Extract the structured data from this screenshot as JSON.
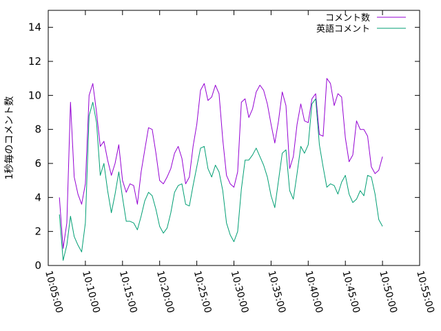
{
  "chart_data": {
    "type": "line",
    "title": "",
    "xlabel": "",
    "ylabel": "1秒毎のコメント数",
    "ylim": [
      0,
      15
    ],
    "yticks": [
      0,
      2,
      4,
      6,
      8,
      10,
      12,
      14
    ],
    "xlim": [
      "10:05:00",
      "10:55:00"
    ],
    "xticks": [
      "10:05:00",
      "10:10:00",
      "10:15:00",
      "10:20:00",
      "10:25:00",
      "10:30:00",
      "10:35:00",
      "10:40:00",
      "10:45:00",
      "10:50:00",
      "10:55:00"
    ],
    "legend_position": "top-right",
    "grid": false,
    "series": [
      {
        "name": "コメント数",
        "color": "#9400d3",
        "x": [
          "10:06:30",
          "10:07:00",
          "10:07:30",
          "10:08:00",
          "10:08:30",
          "10:09:00",
          "10:09:30",
          "10:10:00",
          "10:10:30",
          "10:11:00",
          "10:11:30",
          "10:12:00",
          "10:12:30",
          "10:13:00",
          "10:13:30",
          "10:14:00",
          "10:14:30",
          "10:15:00",
          "10:15:30",
          "10:16:00",
          "10:16:30",
          "10:17:00",
          "10:17:30",
          "10:18:00",
          "10:18:30",
          "10:19:00",
          "10:19:30",
          "10:20:00",
          "10:20:30",
          "10:21:00",
          "10:21:30",
          "10:22:00",
          "10:22:30",
          "10:23:00",
          "10:23:30",
          "10:24:00",
          "10:24:30",
          "10:25:00",
          "10:25:30",
          "10:26:00",
          "10:26:30",
          "10:27:00",
          "10:27:30",
          "10:28:00",
          "10:28:30",
          "10:29:00",
          "10:29:30",
          "10:30:00",
          "10:30:30",
          "10:31:00",
          "10:31:30",
          "10:32:00",
          "10:32:30",
          "10:33:00",
          "10:33:30",
          "10:34:00",
          "10:34:30",
          "10:35:00",
          "10:35:30",
          "10:36:00",
          "10:36:30",
          "10:37:00",
          "10:37:30",
          "10:38:00",
          "10:38:30",
          "10:39:00",
          "10:39:30",
          "10:40:00",
          "10:40:30",
          "10:41:00",
          "10:41:30",
          "10:42:00",
          "10:42:30",
          "10:43:00",
          "10:43:30",
          "10:44:00",
          "10:44:30",
          "10:45:00",
          "10:45:30",
          "10:46:00",
          "10:46:30",
          "10:47:00",
          "10:47:30",
          "10:48:00",
          "10:48:30",
          "10:49:00",
          "10:49:30",
          "10:50:00"
        ],
        "values": [
          4.0,
          1.0,
          2.5,
          9.6,
          5.2,
          4.2,
          3.6,
          4.8,
          10.0,
          10.7,
          9.0,
          7.0,
          7.3,
          6.2,
          5.3,
          6.0,
          7.1,
          5.0,
          4.3,
          4.8,
          4.7,
          3.6,
          5.5,
          6.8,
          8.1,
          8.0,
          6.6,
          5.0,
          4.8,
          5.2,
          5.7,
          6.6,
          7.0,
          6.3,
          4.8,
          5.2,
          7.0,
          8.3,
          10.3,
          10.7,
          9.7,
          9.9,
          10.6,
          10.1,
          7.4,
          5.3,
          4.8,
          4.6,
          5.5,
          9.6,
          9.8,
          8.7,
          9.2,
          10.2,
          10.6,
          10.3,
          9.5,
          8.3,
          7.2,
          8.5,
          10.2,
          9.4,
          5.7,
          6.4,
          8.3,
          9.5,
          8.5,
          8.4,
          9.8,
          10.1,
          7.7,
          7.6,
          11.0,
          10.7,
          9.4,
          10.1,
          9.9,
          7.5,
          6.1,
          6.5,
          8.5,
          8.0,
          8.0,
          7.6,
          5.8,
          5.4,
          5.6,
          6.4
        ]
      },
      {
        "name": "英語コメント",
        "color": "#009e73",
        "x": [
          "10:06:30",
          "10:07:00",
          "10:07:30",
          "10:08:00",
          "10:08:30",
          "10:09:00",
          "10:09:30",
          "10:10:00",
          "10:10:30",
          "10:11:00",
          "10:11:30",
          "10:12:00",
          "10:12:30",
          "10:13:00",
          "10:13:30",
          "10:14:00",
          "10:14:30",
          "10:15:00",
          "10:15:30",
          "10:16:00",
          "10:16:30",
          "10:17:00",
          "10:17:30",
          "10:18:00",
          "10:18:30",
          "10:19:00",
          "10:19:30",
          "10:20:00",
          "10:20:30",
          "10:21:00",
          "10:21:30",
          "10:22:00",
          "10:22:30",
          "10:23:00",
          "10:23:30",
          "10:24:00",
          "10:24:30",
          "10:25:00",
          "10:25:30",
          "10:26:00",
          "10:26:30",
          "10:27:00",
          "10:27:30",
          "10:28:00",
          "10:28:30",
          "10:29:00",
          "10:29:30",
          "10:30:00",
          "10:30:30",
          "10:31:00",
          "10:31:30",
          "10:32:00",
          "10:32:30",
          "10:33:00",
          "10:33:30",
          "10:34:00",
          "10:34:30",
          "10:35:00",
          "10:35:30",
          "10:36:00",
          "10:36:30",
          "10:37:00",
          "10:37:30",
          "10:38:00",
          "10:38:30",
          "10:39:00",
          "10:39:30",
          "10:40:00",
          "10:40:30",
          "10:41:00",
          "10:41:30",
          "10:42:00",
          "10:42:30",
          "10:43:00",
          "10:43:30",
          "10:44:00",
          "10:44:30",
          "10:45:00",
          "10:45:30",
          "10:46:00",
          "10:46:30",
          "10:47:00",
          "10:47:30",
          "10:48:00",
          "10:48:30",
          "10:49:00",
          "10:49:30",
          "10:50:00"
        ],
        "values": [
          3.0,
          0.3,
          1.2,
          2.9,
          1.7,
          1.2,
          0.8,
          2.5,
          8.8,
          9.6,
          8.4,
          5.3,
          6.0,
          4.4,
          3.1,
          4.2,
          5.5,
          4.0,
          2.6,
          2.6,
          2.5,
          2.1,
          2.9,
          3.8,
          4.3,
          4.1,
          3.3,
          2.3,
          1.9,
          2.2,
          3.1,
          4.3,
          4.7,
          4.8,
          3.6,
          3.5,
          4.7,
          5.8,
          6.9,
          7.0,
          5.7,
          5.2,
          5.9,
          5.5,
          4.4,
          2.5,
          1.8,
          1.4,
          2.0,
          4.5,
          6.2,
          6.2,
          6.5,
          6.9,
          6.4,
          5.9,
          5.2,
          4.1,
          3.4,
          5.0,
          6.6,
          6.8,
          4.4,
          3.9,
          5.4,
          7.0,
          6.6,
          7.1,
          9.5,
          9.8,
          7.1,
          5.8,
          4.6,
          4.8,
          4.7,
          4.2,
          4.9,
          5.3,
          4.2,
          3.7,
          3.9,
          4.4,
          4.1,
          5.3,
          5.2,
          4.2,
          2.7,
          2.3
        ]
      }
    ]
  }
}
